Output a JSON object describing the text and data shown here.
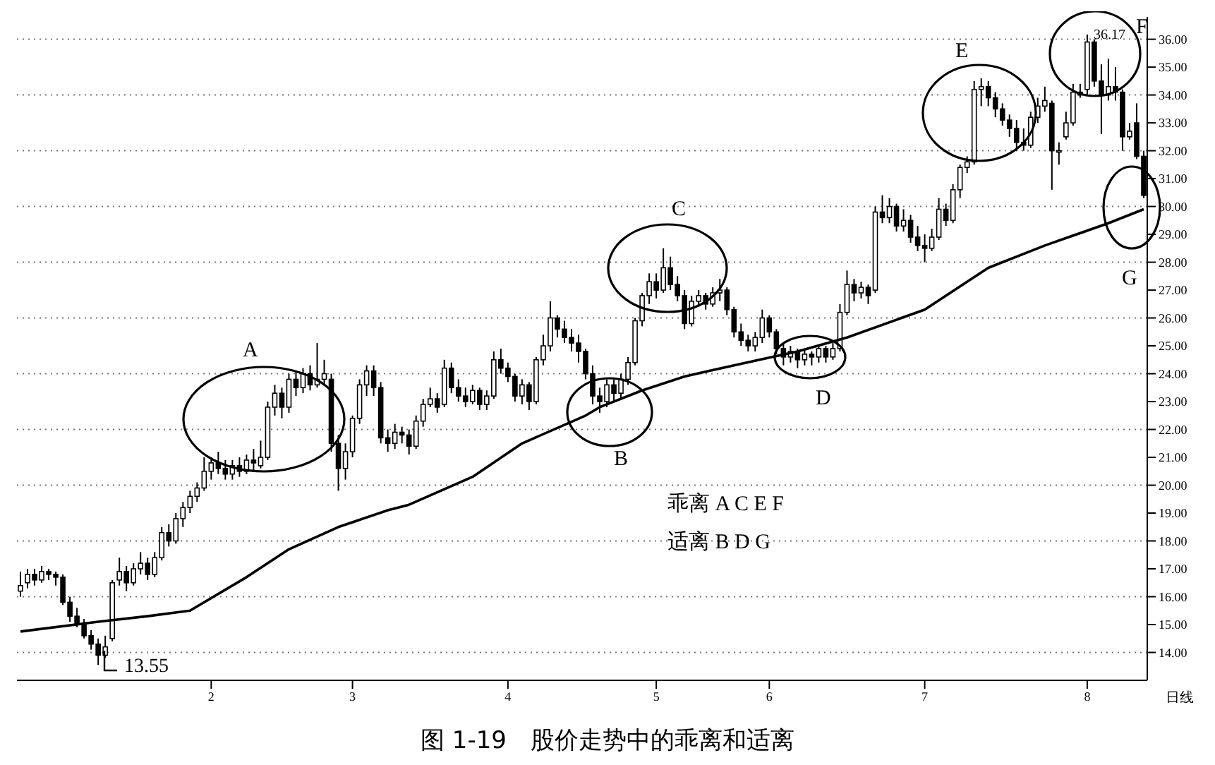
{
  "chart_data": {
    "type": "candlestick",
    "title": "图 1-19　股价走势中的乖离和适离",
    "categories": [
      null,
      null,
      null,
      null,
      null,
      null,
      null,
      null,
      null,
      null,
      null,
      null,
      null,
      null,
      null,
      null,
      null,
      null,
      null,
      null,
      null,
      null,
      null,
      null,
      null,
      null,
      null,
      "2",
      null,
      null,
      null,
      null,
      null,
      null,
      null,
      null,
      null,
      null,
      null,
      null,
      null,
      null,
      null,
      null,
      null,
      null,
      null,
      "3",
      null,
      null,
      null,
      null,
      null,
      null,
      null,
      null,
      null,
      null,
      null,
      null,
      null,
      null,
      null,
      null,
      null,
      null,
      null,
      null,
      null,
      "4",
      null,
      null,
      null,
      null,
      null,
      null,
      null,
      null,
      null,
      null,
      null,
      null,
      null,
      null,
      null,
      null,
      null,
      null,
      null,
      null,
      "5",
      null,
      null,
      null,
      null,
      null,
      null,
      null,
      null,
      null,
      null,
      null,
      null,
      null,
      null,
      null,
      "6",
      null,
      null,
      null,
      null,
      null,
      null,
      null,
      null,
      null,
      null,
      null,
      null,
      null,
      null,
      null,
      null,
      null,
      null,
      null,
      null,
      null,
      "7",
      null,
      null,
      null,
      null,
      null,
      null,
      null,
      null,
      null,
      null,
      null,
      null,
      null,
      null,
      null,
      null,
      null,
      null,
      null,
      null,
      null,
      null,
      "8",
      null,
      null,
      null,
      null,
      null,
      null,
      null,
      null
    ],
    "ohlc": [
      [
        16.2,
        16.9,
        16.0,
        16.4
      ],
      [
        16.5,
        17.0,
        16.3,
        16.8
      ],
      [
        16.8,
        17.0,
        16.4,
        16.6
      ],
      [
        16.6,
        17.1,
        16.5,
        16.9
      ],
      [
        16.9,
        17.0,
        16.6,
        16.8
      ],
      [
        16.8,
        16.9,
        16.4,
        16.7
      ],
      [
        16.7,
        16.8,
        15.7,
        15.8
      ],
      [
        15.8,
        16.0,
        15.1,
        15.3
      ],
      [
        15.3,
        15.6,
        14.9,
        15.0
      ],
      [
        15.0,
        15.2,
        14.5,
        14.6
      ],
      [
        14.6,
        14.8,
        14.1,
        14.3
      ],
      [
        14.3,
        14.5,
        13.55,
        13.9
      ],
      [
        13.9,
        14.6,
        13.8,
        14.2
      ],
      [
        14.5,
        16.6,
        14.4,
        16.5
      ],
      [
        16.6,
        17.4,
        16.4,
        16.9
      ],
      [
        16.9,
        17.1,
        16.2,
        16.5
      ],
      [
        16.5,
        17.2,
        16.4,
        17.0
      ],
      [
        17.0,
        17.6,
        16.8,
        17.2
      ],
      [
        17.2,
        17.4,
        16.6,
        16.8
      ],
      [
        16.8,
        17.6,
        16.7,
        17.4
      ],
      [
        17.4,
        18.5,
        17.3,
        18.3
      ],
      [
        18.3,
        18.6,
        17.8,
        18.0
      ],
      [
        18.0,
        19.0,
        17.9,
        18.8
      ],
      [
        18.8,
        19.4,
        18.5,
        19.2
      ],
      [
        19.2,
        19.8,
        19.0,
        19.6
      ],
      [
        19.6,
        20.1,
        19.4,
        19.9
      ],
      [
        19.9,
        21.0,
        19.8,
        20.5
      ],
      [
        20.5,
        21.0,
        20.2,
        20.8
      ],
      [
        20.8,
        21.2,
        20.4,
        20.6
      ],
      [
        20.6,
        20.9,
        20.2,
        20.4
      ],
      [
        20.4,
        20.9,
        20.2,
        20.7
      ],
      [
        20.7,
        21.0,
        20.3,
        20.5
      ],
      [
        20.5,
        21.1,
        20.4,
        20.9
      ],
      [
        20.9,
        21.3,
        20.5,
        20.8
      ],
      [
        20.7,
        21.6,
        20.6,
        21.0
      ],
      [
        21.0,
        23.0,
        20.9,
        22.8
      ],
      [
        22.8,
        23.6,
        22.5,
        23.3
      ],
      [
        23.3,
        23.5,
        22.4,
        22.8
      ],
      [
        22.8,
        24.0,
        22.6,
        23.8
      ],
      [
        23.8,
        24.1,
        23.2,
        23.5
      ],
      [
        23.5,
        24.2,
        23.3,
        24.0
      ],
      [
        24.0,
        24.3,
        23.4,
        23.6
      ],
      [
        23.6,
        25.1,
        23.5,
        23.8
      ],
      [
        23.8,
        24.5,
        23.6,
        24.0
      ],
      [
        23.8,
        24.0,
        21.2,
        21.5
      ],
      [
        21.5,
        21.8,
        19.8,
        20.6
      ],
      [
        20.6,
        21.5,
        20.2,
        21.2
      ],
      [
        21.2,
        22.5,
        21.0,
        22.4
      ],
      [
        22.4,
        23.8,
        22.2,
        23.6
      ],
      [
        23.6,
        24.3,
        23.2,
        24.1
      ],
      [
        24.1,
        24.3,
        23.2,
        23.5
      ],
      [
        23.5,
        23.7,
        21.5,
        21.7
      ],
      [
        21.7,
        22.0,
        21.2,
        21.5
      ],
      [
        21.5,
        22.2,
        21.3,
        21.9
      ],
      [
        21.9,
        22.1,
        21.5,
        21.8
      ],
      [
        21.8,
        22.0,
        21.1,
        21.4
      ],
      [
        21.4,
        22.5,
        21.3,
        22.3
      ],
      [
        22.3,
        23.1,
        22.1,
        22.9
      ],
      [
        22.9,
        23.5,
        22.8,
        23.1
      ],
      [
        23.1,
        23.3,
        22.6,
        22.8
      ],
      [
        22.9,
        24.5,
        22.8,
        24.2
      ],
      [
        24.2,
        24.4,
        23.3,
        23.5
      ],
      [
        23.5,
        23.8,
        23.0,
        23.2
      ],
      [
        23.2,
        23.5,
        22.8,
        23.0
      ],
      [
        23.0,
        23.6,
        22.9,
        23.4
      ],
      [
        23.4,
        23.5,
        22.7,
        22.9
      ],
      [
        22.9,
        23.4,
        22.7,
        23.2
      ],
      [
        23.2,
        24.8,
        23.1,
        24.5
      ],
      [
        24.5,
        24.9,
        24.0,
        24.2
      ],
      [
        24.2,
        24.4,
        23.7,
        23.9
      ],
      [
        23.9,
        24.0,
        23.0,
        23.2
      ],
      [
        23.2,
        23.8,
        22.9,
        23.6
      ],
      [
        23.6,
        23.7,
        22.7,
        23.0
      ],
      [
        23.0,
        24.6,
        22.9,
        24.5
      ],
      [
        24.5,
        25.4,
        24.3,
        25.0
      ],
      [
        25.0,
        26.6,
        24.8,
        26.0
      ],
      [
        26.0,
        26.1,
        25.3,
        25.6
      ],
      [
        25.6,
        25.9,
        25.1,
        25.3
      ],
      [
        25.3,
        25.6,
        24.8,
        25.1
      ],
      [
        25.1,
        25.4,
        24.4,
        24.8
      ],
      [
        24.8,
        24.9,
        23.8,
        24.0
      ],
      [
        24.0,
        24.3,
        22.9,
        23.2
      ],
      [
        23.2,
        23.5,
        22.6,
        23.0
      ],
      [
        23.0,
        23.8,
        22.8,
        23.6
      ],
      [
        23.6,
        23.8,
        23.0,
        23.3
      ],
      [
        23.3,
        24.0,
        23.1,
        23.8
      ],
      [
        23.8,
        24.6,
        23.6,
        24.4
      ],
      [
        24.4,
        26.0,
        24.3,
        25.9
      ],
      [
        25.9,
        26.9,
        25.7,
        26.8
      ],
      [
        26.8,
        27.6,
        26.5,
        27.3
      ],
      [
        27.3,
        27.6,
        26.7,
        27.0
      ],
      [
        27.0,
        28.5,
        26.9,
        27.8
      ],
      [
        27.8,
        28.2,
        27.0,
        27.2
      ],
      [
        27.2,
        27.5,
        26.6,
        26.8
      ],
      [
        26.8,
        27.0,
        25.6,
        25.8
      ],
      [
        25.8,
        26.8,
        25.7,
        26.6
      ],
      [
        26.6,
        27.0,
        26.4,
        26.8
      ],
      [
        26.8,
        26.9,
        26.3,
        26.5
      ],
      [
        26.5,
        27.1,
        26.4,
        26.9
      ],
      [
        26.9,
        27.4,
        26.6,
        27.0
      ],
      [
        27.0,
        27.1,
        26.1,
        26.3
      ],
      [
        26.3,
        26.4,
        25.3,
        25.5
      ],
      [
        25.5,
        25.8,
        25.0,
        25.2
      ],
      [
        25.2,
        25.4,
        24.8,
        25.0
      ],
      [
        25.0,
        25.5,
        24.8,
        25.3
      ],
      [
        25.3,
        26.3,
        25.1,
        26.0
      ],
      [
        26.0,
        26.1,
        25.3,
        25.5
      ],
      [
        25.5,
        25.6,
        24.7,
        24.9
      ],
      [
        24.9,
        25.1,
        24.3,
        24.6
      ],
      [
        24.6,
        25.0,
        24.4,
        24.8
      ],
      [
        24.8,
        24.9,
        24.2,
        24.5
      ],
      [
        24.5,
        24.9,
        24.3,
        24.7
      ],
      [
        24.7,
        24.8,
        24.3,
        24.6
      ],
      [
        24.6,
        25.0,
        24.4,
        24.9
      ],
      [
        24.9,
        25.0,
        24.4,
        24.6
      ],
      [
        24.6,
        25.1,
        24.5,
        24.9
      ],
      [
        24.9,
        26.5,
        24.8,
        26.2
      ],
      [
        26.2,
        27.7,
        26.1,
        27.2
      ],
      [
        27.2,
        27.4,
        26.6,
        26.9
      ],
      [
        26.9,
        27.3,
        26.7,
        27.1
      ],
      [
        27.1,
        27.2,
        26.5,
        26.8
      ],
      [
        27.0,
        30.0,
        26.9,
        29.8
      ],
      [
        29.8,
        30.4,
        29.4,
        29.6
      ],
      [
        29.6,
        30.3,
        29.4,
        30.0
      ],
      [
        30.0,
        30.1,
        29.1,
        29.3
      ],
      [
        29.3,
        29.9,
        29.1,
        29.5
      ],
      [
        29.5,
        29.7,
        28.7,
        28.9
      ],
      [
        28.9,
        29.3,
        28.4,
        28.6
      ],
      [
        28.6,
        29.0,
        28.0,
        28.5
      ],
      [
        28.5,
        29.2,
        28.4,
        28.9
      ],
      [
        28.9,
        30.3,
        28.8,
        29.9
      ],
      [
        29.9,
        30.1,
        29.3,
        29.5
      ],
      [
        29.5,
        30.8,
        29.4,
        30.6
      ],
      [
        30.6,
        31.5,
        30.3,
        31.4
      ],
      [
        31.4,
        31.8,
        31.2,
        31.6
      ],
      [
        31.6,
        34.5,
        31.5,
        34.2
      ],
      [
        34.2,
        34.6,
        33.6,
        34.3
      ],
      [
        34.3,
        34.5,
        33.6,
        33.9
      ],
      [
        33.9,
        34.1,
        33.2,
        33.5
      ],
      [
        33.5,
        33.7,
        32.9,
        33.1
      ],
      [
        33.1,
        33.3,
        32.5,
        32.8
      ],
      [
        32.8,
        33.1,
        32.0,
        32.3
      ],
      [
        32.3,
        32.8,
        32.0,
        32.2
      ],
      [
        32.2,
        33.4,
        32.1,
        33.2
      ],
      [
        33.2,
        33.9,
        33.0,
        33.6
      ],
      [
        33.6,
        34.3,
        33.4,
        33.8
      ],
      [
        33.7,
        33.8,
        30.6,
        32.0
      ],
      [
        32.0,
        32.3,
        31.5,
        32.0
      ],
      [
        32.5,
        33.4,
        32.4,
        33.0
      ],
      [
        33.0,
        34.4,
        32.9,
        34.1
      ],
      [
        34.1,
        34.4,
        33.9,
        34.0
      ],
      [
        34.2,
        36.17,
        34.0,
        35.9
      ],
      [
        35.9,
        36.0,
        34.3,
        34.5
      ],
      [
        34.5,
        35.1,
        32.6,
        34.0
      ],
      [
        34.0,
        35.3,
        33.8,
        34.3
      ],
      [
        34.3,
        35.0,
        33.8,
        34.1
      ],
      [
        34.1,
        34.2,
        32.0,
        32.5
      ],
      [
        32.5,
        33.0,
        32.4,
        32.7
      ],
      [
        33.0,
        33.7,
        31.7,
        31.8
      ],
      [
        31.8,
        32.0,
        30.3,
        30.4
      ]
    ],
    "series": [
      {
        "type": "line",
        "color": "#000000",
        "values": [
          14.75,
          null,
          null,
          null,
          null,
          null,
          null,
          null,
          null,
          null,
          null,
          15.1,
          null,
          null,
          null,
          null,
          null,
          null,
          15.3,
          null,
          null,
          null,
          null,
          null,
          15.5,
          null,
          null,
          null,
          null,
          null,
          null,
          null,
          16.7,
          null,
          null,
          null,
          null,
          null,
          17.7,
          null,
          null,
          null,
          null,
          null,
          null,
          18.5,
          null,
          null,
          null,
          null,
          null,
          null,
          19.1,
          null,
          null,
          19.3,
          null,
          null,
          null,
          null,
          null,
          null,
          null,
          null,
          20.3,
          null,
          null,
          null,
          null,
          null,
          null,
          21.5,
          null,
          null,
          null,
          null,
          null,
          null,
          null,
          null,
          22.5,
          null,
          22.8,
          null,
          null,
          null,
          null,
          null,
          23.4,
          null,
          null,
          null,
          null,
          null,
          23.9,
          null,
          null,
          null,
          null,
          null,
          null,
          24.3,
          null,
          null,
          null,
          null,
          null,
          null,
          null,
          null,
          24.8,
          null,
          null,
          null,
          null,
          null,
          null,
          25.3,
          null,
          null,
          null,
          null,
          null,
          null,
          null,
          null,
          null,
          null,
          26.3,
          null,
          null,
          null,
          null,
          null,
          null,
          null,
          null,
          27.8,
          null,
          null,
          null,
          null,
          null,
          null,
          null,
          28.6,
          null,
          null,
          null,
          null,
          null,
          null,
          null,
          null,
          29.4,
          null,
          null,
          null,
          null,
          29.9
        ]
      }
    ],
    "ylim": [
      13,
      36.8
    ],
    "yticks": [
      {
        "value": 14,
        "label": "14.00"
      },
      {
        "value": 15,
        "label": "15.00"
      },
      {
        "value": 16,
        "label": "16.00"
      },
      {
        "value": 17,
        "label": "17.00"
      },
      {
        "value": 18,
        "label": "18.00"
      },
      {
        "value": 19,
        "label": "19.00"
      },
      {
        "value": 20,
        "label": "20.00"
      },
      {
        "value": 21,
        "label": "21.00"
      },
      {
        "value": 22,
        "label": "22.00"
      },
      {
        "value": 23,
        "label": "23.00"
      },
      {
        "value": 24,
        "label": "24.00"
      },
      {
        "value": 25,
        "label": "25.00"
      },
      {
        "value": 26,
        "label": "26.00"
      },
      {
        "value": 27,
        "label": "27.00"
      },
      {
        "value": 28,
        "label": "28.00"
      },
      {
        "value": 29,
        "label": "29.00"
      },
      {
        "value": 30,
        "label": "30.00"
      },
      {
        "value": 31,
        "label": "31.00"
      },
      {
        "value": 32,
        "label": "32.00"
      },
      {
        "value": 33,
        "label": "33.00"
      },
      {
        "value": 34,
        "label": "34.00"
      },
      {
        "value": 35,
        "label": "35.00"
      },
      {
        "value": 36,
        "label": "36.00"
      }
    ],
    "grid": "y",
    "annotations": [
      "A",
      "B",
      "C",
      "D",
      "E",
      "F",
      "G",
      "13.55",
      "36.17",
      "乖离 A C E F",
      "适离 B D G",
      "日线"
    ]
  }
}
